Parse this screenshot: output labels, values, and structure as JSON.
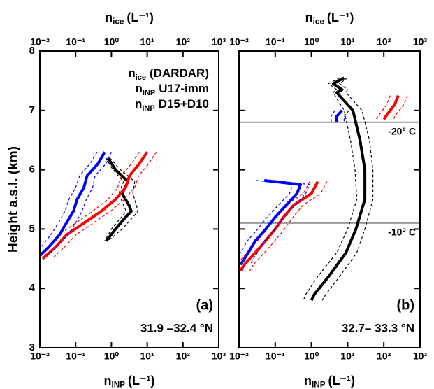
{
  "chart_data": [
    {
      "type": "line",
      "panel_label": "(a)",
      "latitude": "31.9 –32.4 °N",
      "x_label": {
        "symbol": "n",
        "subscript": "INP",
        "unit": "(L⁻¹)"
      },
      "x2_label": {
        "symbol": "n",
        "subscript": "ice",
        "unit": "(L⁻¹)"
      },
      "y_label": "Height a.s.l. (km)",
      "xscale": "log",
      "xlim": [
        0.01,
        1000
      ],
      "ylim": [
        3,
        8
      ],
      "xticks": [
        {
          "value": 0.01,
          "label": "10⁻²"
        },
        {
          "value": 0.1,
          "label": "10⁻¹"
        },
        {
          "value": 1,
          "label": "10⁰"
        },
        {
          "value": 10,
          "label": "10¹"
        },
        {
          "value": 100,
          "label": "10²"
        },
        {
          "value": 1000,
          "label": "10³"
        }
      ],
      "yticks": [
        3,
        4,
        5,
        6,
        7,
        8
      ],
      "show_ytick_labels": true,
      "legend": "upper right",
      "series": [
        {
          "name": "(DARDAR)",
          "symbol": "n",
          "subscript": "ice",
          "color": "#000000",
          "y": [
            6.2,
            6.0,
            5.8,
            5.6,
            5.4,
            5.3,
            5.2,
            5.0,
            4.8
          ],
          "x": [
            0.8,
            1.3,
            2.9,
            2.0,
            3.1,
            3.6,
            2.5,
            1.3,
            0.72
          ],
          "x_low": [
            0.7,
            1.1,
            2.2,
            1.6,
            2.2,
            2.6,
            1.9,
            1.0,
            0.65
          ],
          "x_high": [
            0.9,
            1.8,
            4.5,
            4.0,
            5.0,
            5.5,
            4.0,
            2.0,
            0.8
          ]
        },
        {
          "name": "U17-imm",
          "symbol": "n",
          "subscript": "INP",
          "color": "#ff0000",
          "y": [
            6.3,
            6.1,
            5.9,
            5.7,
            5.5,
            5.3,
            5.1,
            4.9,
            4.7,
            4.5
          ],
          "x": [
            10,
            6,
            3.2,
            2.5,
            1.3,
            0.52,
            0.17,
            0.055,
            0.028,
            0.012
          ],
          "x_low": [
            6,
            3.6,
            1.9,
            1.5,
            0.8,
            0.3,
            0.1,
            0.033,
            0.017,
            0.0072
          ],
          "x_high": [
            18,
            11,
            5.8,
            4.5,
            2.3,
            0.94,
            0.31,
            0.1,
            0.05,
            0.022
          ]
        },
        {
          "name": "D15+D10",
          "symbol": "n",
          "subscript": "INP",
          "color": "#0000ff",
          "y": [
            6.3,
            6.1,
            5.9,
            5.7,
            5.5,
            5.3,
            5.1,
            4.9,
            4.7,
            4.55
          ],
          "x": [
            0.65,
            0.42,
            0.21,
            0.17,
            0.11,
            0.087,
            0.055,
            0.035,
            0.018,
            0.01
          ],
          "x_low": [
            0.4,
            0.25,
            0.13,
            0.1,
            0.065,
            0.05,
            0.033,
            0.02,
            0.011,
            0.0065
          ],
          "x_high": [
            1.0,
            0.7,
            0.35,
            0.3,
            0.2,
            0.15,
            0.1,
            0.06,
            0.03,
            0.016
          ]
        }
      ]
    },
    {
      "type": "line",
      "panel_label": "(b)",
      "latitude": "32.7– 33.3 °N",
      "x_label": {
        "symbol": "n",
        "subscript": "INP",
        "unit": "(L⁻¹)"
      },
      "x2_label": {
        "symbol": "n",
        "subscript": "ice",
        "unit": "(L⁻¹)"
      },
      "xscale": "log",
      "xlim": [
        0.01,
        1000
      ],
      "ylim": [
        3,
        8
      ],
      "xticks": [
        {
          "value": 0.01,
          "label": "10⁻²"
        },
        {
          "value": 0.1,
          "label": "10⁻¹"
        },
        {
          "value": 1,
          "label": "10⁰"
        },
        {
          "value": 10,
          "label": "10¹"
        },
        {
          "value": 100,
          "label": "10²"
        },
        {
          "value": 1000,
          "label": "10³"
        }
      ],
      "yticks": [
        3,
        4,
        5,
        6,
        7,
        8
      ],
      "show_ytick_labels": false,
      "reference_lines": [
        {
          "y": 6.8,
          "label": "-20° C",
          "color": "#999999"
        },
        {
          "y": 5.1,
          "label": "-10° C",
          "color": "#999999"
        }
      ],
      "series": [
        {
          "color": "#000000",
          "y": [
            7.55,
            7.45,
            7.35,
            7.3,
            7.0,
            6.5,
            6.0,
            5.5,
            5.0,
            4.6,
            4.2,
            3.9,
            3.8
          ],
          "x": [
            8,
            4,
            7,
            5,
            14,
            22,
            30,
            30,
            17,
            9,
            3,
            1.2,
            1
          ],
          "x_low": [
            6,
            3,
            5,
            4,
            8,
            12,
            16,
            18,
            10,
            5,
            1.5,
            0.7,
            0.6
          ],
          "x_high": [
            10,
            6,
            10,
            9,
            25,
            40,
            50,
            50,
            30,
            18,
            6,
            2.5,
            2
          ]
        },
        {
          "color": "#ff0000",
          "y": [
            7.25,
            7.1,
            6.95,
            6.85,
            null,
            5.8,
            5.6,
            5.4,
            5.2,
            5.0,
            4.8,
            4.6,
            4.4,
            4.3
          ],
          "x": [
            250,
            200,
            130,
            100,
            null,
            1.5,
            1,
            0.32,
            0.17,
            0.1,
            0.054,
            0.028,
            0.014,
            0.011
          ],
          "x_low": [
            150,
            120,
            80,
            60,
            null,
            0.9,
            0.6,
            0.19,
            0.1,
            0.06,
            0.032,
            0.017,
            0.0084,
            0.0066
          ],
          "x_high": [
            450,
            360,
            230,
            180,
            null,
            2.7,
            1.8,
            0.58,
            0.31,
            0.18,
            0.097,
            0.05,
            0.025,
            0.02
          ]
        },
        {
          "color": "#0000ff",
          "y": [
            7.0,
            6.9,
            6.8,
            null,
            5.82,
            5.75,
            5.6,
            5.4,
            5.2,
            5.0,
            4.8,
            4.6,
            4.4
          ],
          "x": [
            7,
            5,
            5,
            null,
            0.05,
            0.5,
            0.4,
            0.2,
            0.1,
            0.055,
            0.028,
            0.018,
            0.011
          ],
          "x_low": [
            4.5,
            3.5,
            3.5,
            null,
            0.03,
            0.3,
            0.25,
            0.12,
            0.06,
            0.033,
            0.017,
            0.011,
            0.0066
          ],
          "x_high": [
            11,
            8,
            8,
            null,
            0.09,
            0.9,
            0.7,
            0.35,
            0.18,
            0.1,
            0.05,
            0.032,
            0.02
          ]
        }
      ]
    }
  ]
}
